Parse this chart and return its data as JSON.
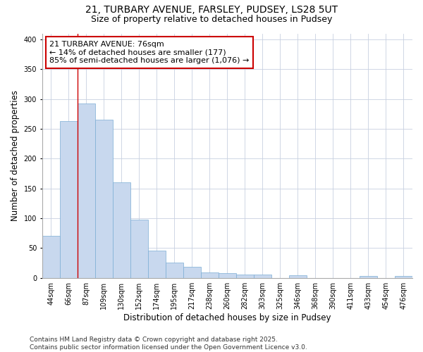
{
  "title_line1": "21, TURBARY AVENUE, FARSLEY, PUDSEY, LS28 5UT",
  "title_line2": "Size of property relative to detached houses in Pudsey",
  "xlabel": "Distribution of detached houses by size in Pudsey",
  "ylabel": "Number of detached properties",
  "categories": [
    "44sqm",
    "66sqm",
    "87sqm",
    "109sqm",
    "130sqm",
    "152sqm",
    "174sqm",
    "195sqm",
    "217sqm",
    "238sqm",
    "260sqm",
    "282sqm",
    "303sqm",
    "325sqm",
    "346sqm",
    "368sqm",
    "390sqm",
    "411sqm",
    "433sqm",
    "454sqm",
    "476sqm"
  ],
  "values": [
    70,
    263,
    293,
    265,
    160,
    98,
    46,
    26,
    18,
    9,
    8,
    5,
    5,
    0,
    4,
    0,
    0,
    0,
    3,
    0,
    3
  ],
  "bar_color": "#c8d8ee",
  "bar_edge_color": "#7badd4",
  "vline_x_index": 1.5,
  "vline_color": "#cc0000",
  "annotation_text": "21 TURBARY AVENUE: 76sqm\n← 14% of detached houses are smaller (177)\n85% of semi-detached houses are larger (1,076) →",
  "annotation_box_color": "#ffffff",
  "annotation_box_edge": "#cc0000",
  "ylim": [
    0,
    410
  ],
  "yticks": [
    0,
    50,
    100,
    150,
    200,
    250,
    300,
    350,
    400
  ],
  "plot_bg_color": "#ffffff",
  "bg_color": "#ffffff",
  "grid_color": "#c8d0e0",
  "footer_text": "Contains HM Land Registry data © Crown copyright and database right 2025.\nContains public sector information licensed under the Open Government Licence v3.0.",
  "title_fontsize": 10,
  "subtitle_fontsize": 9,
  "axis_label_fontsize": 8.5,
  "tick_fontsize": 7,
  "annotation_fontsize": 8,
  "footer_fontsize": 6.5
}
